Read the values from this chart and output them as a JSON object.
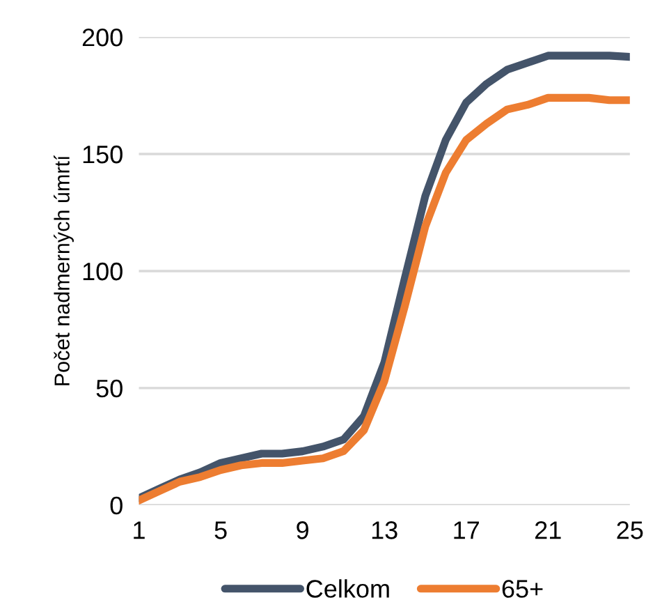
{
  "chart_data": {
    "type": "line",
    "ylabel": "Počet nadmerných úmrtí",
    "x": [
      1,
      2,
      3,
      4,
      5,
      6,
      7,
      8,
      9,
      10,
      11,
      12,
      13,
      14,
      15,
      16,
      17,
      18,
      19,
      20,
      21,
      22,
      23,
      24,
      25
    ],
    "series": [
      {
        "name": "Celkom",
        "color": "#44546a",
        "values": [
          3,
          7,
          11,
          14,
          18,
          20,
          22,
          22,
          23,
          25,
          28,
          38,
          61,
          97,
          132,
          156,
          172,
          180,
          186,
          189,
          192,
          192,
          192,
          192,
          191.5
        ]
      },
      {
        "name": "65+",
        "color": "#ed7d31",
        "values": [
          2,
          6,
          10,
          12,
          15,
          17,
          18,
          18,
          19,
          20,
          23,
          32,
          53,
          85,
          119,
          142,
          156,
          163,
          169,
          171,
          174,
          174,
          174,
          173,
          173
        ]
      }
    ],
    "xlim": [
      1,
      25
    ],
    "xticks": [
      1,
      5,
      9,
      13,
      17,
      21,
      25
    ],
    "ylim": [
      0,
      200
    ],
    "yticks": [
      0,
      50,
      100,
      150,
      200
    ],
    "grid": "y",
    "legend": "bottom",
    "marker": "none",
    "line_style": "solid"
  }
}
